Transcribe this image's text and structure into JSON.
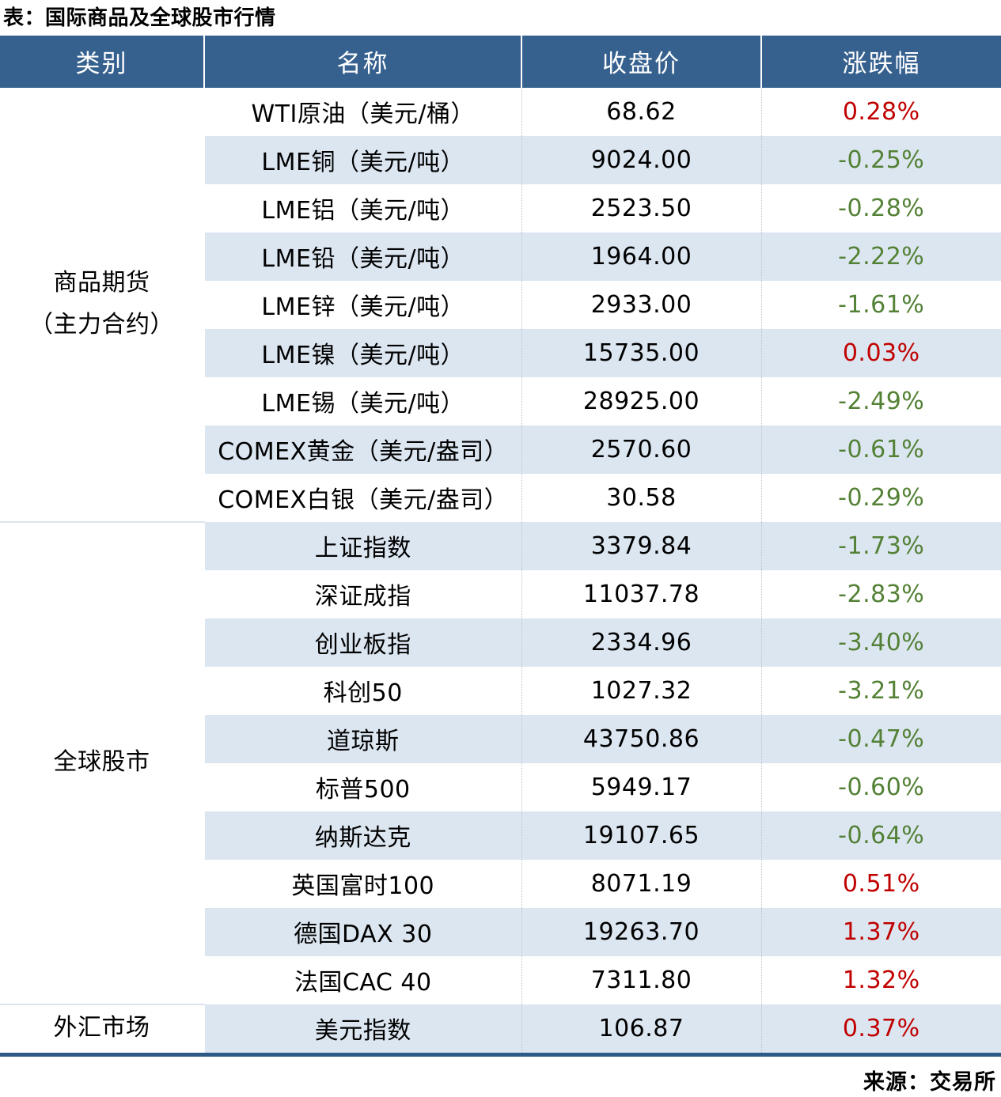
{
  "page": {
    "title": "表：国际商品及全球股市行情",
    "source": "来源：交易所"
  },
  "colors": {
    "header_bg": "#36618f",
    "row_shade": "#dce6f1",
    "up_red": "#c00000",
    "down_green": "#538135",
    "bottom_border": "#2e5a88"
  },
  "table": {
    "headers": [
      "类别",
      "名称",
      "收盘价",
      "涨跌幅"
    ],
    "groups": [
      {
        "category_lines": [
          "商品期货",
          "（主力合约）"
        ],
        "rows": [
          {
            "name": "WTI原油（美元/桶）",
            "close": "68.62",
            "change": "0.28%",
            "direction": "up"
          },
          {
            "name": "LME铜（美元/吨）",
            "close": "9024.00",
            "change": "-0.25%",
            "direction": "down"
          },
          {
            "name": "LME铝（美元/吨）",
            "close": "2523.50",
            "change": "-0.28%",
            "direction": "down"
          },
          {
            "name": "LME铅（美元/吨）",
            "close": "1964.00",
            "change": "-2.22%",
            "direction": "down"
          },
          {
            "name": "LME锌（美元/吨）",
            "close": "2933.00",
            "change": "-1.61%",
            "direction": "down"
          },
          {
            "name": "LME镍（美元/吨）",
            "close": "15735.00",
            "change": "0.03%",
            "direction": "up"
          },
          {
            "name": "LME锡（美元/吨）",
            "close": "28925.00",
            "change": "-2.49%",
            "direction": "down"
          },
          {
            "name": "COMEX黄金（美元/盎司）",
            "close": "2570.60",
            "change": "-0.61%",
            "direction": "down"
          },
          {
            "name": "COMEX白银（美元/盎司）",
            "close": "30.58",
            "change": "-0.29%",
            "direction": "down"
          }
        ]
      },
      {
        "category_lines": [
          "全球股市"
        ],
        "rows": [
          {
            "name": "上证指数",
            "close": "3379.84",
            "change": "-1.73%",
            "direction": "down"
          },
          {
            "name": "深证成指",
            "close": "11037.78",
            "change": "-2.83%",
            "direction": "down"
          },
          {
            "name": "创业板指",
            "close": "2334.96",
            "change": "-3.40%",
            "direction": "down"
          },
          {
            "name": "科创50",
            "close": "1027.32",
            "change": "-3.21%",
            "direction": "down"
          },
          {
            "name": "道琼斯",
            "close": "43750.86",
            "change": "-0.47%",
            "direction": "down"
          },
          {
            "name": "标普500",
            "close": "5949.17",
            "change": "-0.60%",
            "direction": "down"
          },
          {
            "name": "纳斯达克",
            "close": "19107.65",
            "change": "-0.64%",
            "direction": "down"
          },
          {
            "name": "英国富时100",
            "close": "8071.19",
            "change": "0.51%",
            "direction": "up"
          },
          {
            "name": "德国DAX 30",
            "close": "19263.70",
            "change": "1.37%",
            "direction": "up"
          },
          {
            "name": "法国CAC 40",
            "close": "7311.80",
            "change": "1.32%",
            "direction": "up"
          }
        ]
      },
      {
        "category_lines": [
          "外汇市场"
        ],
        "rows": [
          {
            "name": "美元指数",
            "close": "106.87",
            "change": "0.37%",
            "direction": "up"
          }
        ]
      }
    ]
  },
  "chart_data": {
    "type": "table",
    "title": "表：国际商品及全球股市行情",
    "source": "来源：交易所",
    "columns": [
      "类别",
      "名称",
      "收盘价",
      "涨跌幅"
    ],
    "rows": [
      [
        "商品期货（主力合约）",
        "WTI原油（美元/桶）",
        68.62,
        0.28
      ],
      [
        "商品期货（主力合约）",
        "LME铜（美元/吨）",
        9024.0,
        -0.25
      ],
      [
        "商品期货（主力合约）",
        "LME铝（美元/吨）",
        2523.5,
        -0.28
      ],
      [
        "商品期货（主力合约）",
        "LME铅（美元/吨）",
        1964.0,
        -2.22
      ],
      [
        "商品期货（主力合约）",
        "LME锌（美元/吨）",
        2933.0,
        -1.61
      ],
      [
        "商品期货（主力合约）",
        "LME镍（美元/吨）",
        15735.0,
        0.03
      ],
      [
        "商品期货（主力合约）",
        "LME锡（美元/吨）",
        28925.0,
        -2.49
      ],
      [
        "商品期货（主力合约）",
        "COMEX黄金（美元/盎司）",
        2570.6,
        -0.61
      ],
      [
        "商品期货（主力合约）",
        "COMEX白银（美元/盎司）",
        30.58,
        -0.29
      ],
      [
        "全球股市",
        "上证指数",
        3379.84,
        -1.73
      ],
      [
        "全球股市",
        "深证成指",
        11037.78,
        -2.83
      ],
      [
        "全球股市",
        "创业板指",
        2334.96,
        -3.4
      ],
      [
        "全球股市",
        "科创50",
        1027.32,
        -3.21
      ],
      [
        "全球股市",
        "道琼斯",
        43750.86,
        -0.47
      ],
      [
        "全球股市",
        "标普500",
        5949.17,
        -0.6
      ],
      [
        "全球股市",
        "纳斯达克",
        19107.65,
        -0.64
      ],
      [
        "全球股市",
        "英国富时100",
        8071.19,
        0.51
      ],
      [
        "全球股市",
        "德国DAX 30",
        19263.7,
        1.37
      ],
      [
        "全球股市",
        "法国CAC 40",
        7311.8,
        1.32
      ],
      [
        "外汇市场",
        "美元指数",
        106.87,
        0.37
      ]
    ],
    "value_color_rule": "正值为红色，负值为绿色",
    "row_banding": "白色与浅蓝交替"
  }
}
